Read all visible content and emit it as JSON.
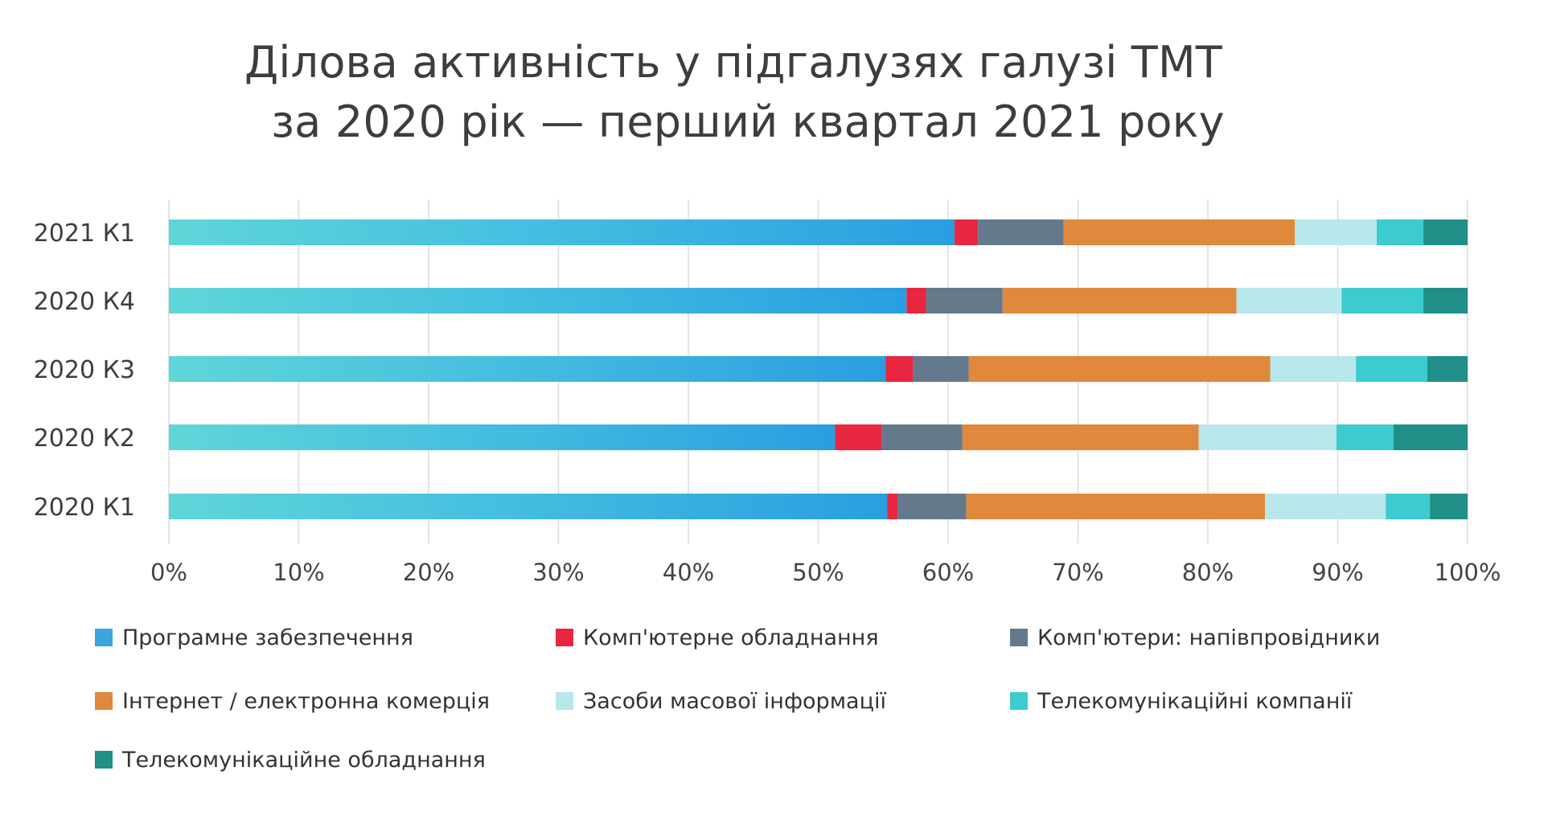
{
  "chart_data": {
    "type": "bar",
    "orientation": "horizontal",
    "stacked": "percent",
    "title": "Ділова активність у підгалузях галузі ТМТ",
    "subtitle": "за 2020 рік — перший квартал 2021 року",
    "categories": [
      "2021 К1",
      "2020 К4",
      "2020 К3",
      "2020 К2",
      "2020 К1"
    ],
    "xlim": [
      0,
      100
    ],
    "x_ticks": [
      "0%",
      "10%",
      "20%",
      "30%",
      "40%",
      "50%",
      "60%",
      "70%",
      "80%",
      "90%",
      "100%"
    ],
    "grid": true,
    "legend_position": "bottom",
    "series": [
      {
        "name": "Програмне забезпечення",
        "color": "#3aa6dd",
        "values": [
          60.5,
          56.8,
          55.2,
          51.3,
          55.3
        ]
      },
      {
        "name": "Комп'ютерне обладнання",
        "color": "#e8263f",
        "values": [
          1.8,
          1.5,
          2.1,
          3.6,
          0.8
        ]
      },
      {
        "name": "Комп'ютери: напівпровідники",
        "color": "#647a8c",
        "values": [
          6.6,
          5.9,
          4.3,
          6.2,
          5.3
        ]
      },
      {
        "name": "Інтернет / електронна комерція",
        "color": "#e0883b",
        "values": [
          17.8,
          18.0,
          23.2,
          18.2,
          23.0
        ]
      },
      {
        "name": "Засоби масової інформації",
        "color": "#b8e7ec",
        "values": [
          6.3,
          8.1,
          6.6,
          10.6,
          9.3
        ]
      },
      {
        "name": "Телекомунікаційні компанії",
        "color": "#3ccbcf",
        "values": [
          3.6,
          6.3,
          5.5,
          4.4,
          3.4
        ]
      },
      {
        "name": "Телекомунікаційне обладнання",
        "color": "#1f8f88",
        "values": [
          3.4,
          3.4,
          3.1,
          5.7,
          2.9
        ]
      }
    ]
  }
}
